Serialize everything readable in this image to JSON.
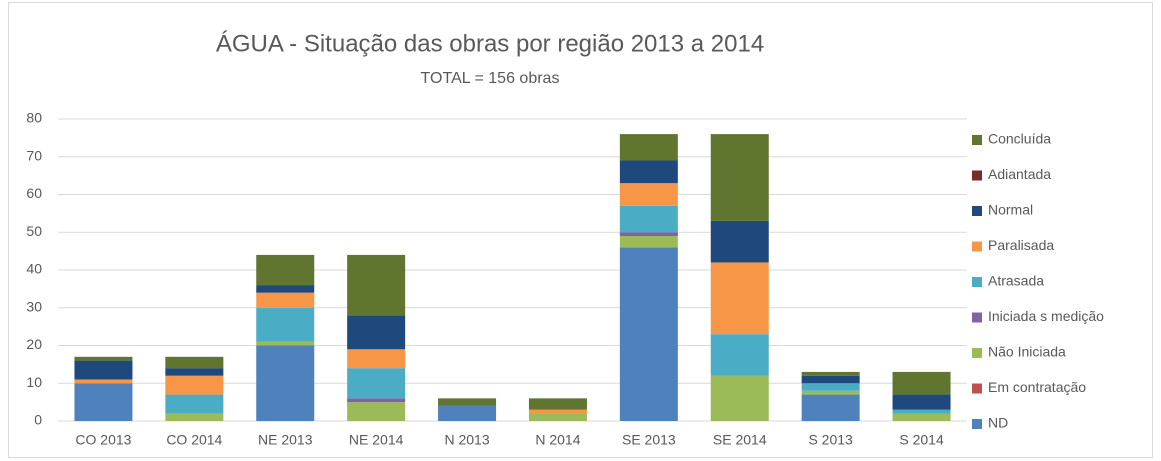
{
  "chart_data": {
    "type": "stacked_bar",
    "title": "ÁGUA - Situação das obras por região 2013 a 2014",
    "subtitle": "TOTAL = 156 obras",
    "categories": [
      "CO 2013",
      "CO 2014",
      "NE 2013",
      "NE 2014",
      "N 2013",
      "N 2014",
      "SE 2013",
      "SE 2014",
      "S 2013",
      "S 2014"
    ],
    "series": [
      {
        "name": "ND",
        "color": "#4f81bd",
        "values": [
          10,
          0,
          20,
          0,
          4,
          0,
          46,
          0,
          7,
          0
        ]
      },
      {
        "name": "Em contratação",
        "color": "#c0504d",
        "values": [
          0,
          0,
          0,
          0,
          0,
          0,
          0,
          0,
          0,
          0
        ]
      },
      {
        "name": "Não Iniciada",
        "color": "#9bbb59",
        "values": [
          0,
          2,
          1,
          5,
          0,
          2,
          3,
          12,
          1,
          2
        ]
      },
      {
        "name": "Iniciada s medição",
        "color": "#8064a2",
        "values": [
          0,
          0,
          0,
          1,
          0,
          0,
          1,
          0,
          0,
          0
        ]
      },
      {
        "name": "Atrasada",
        "color": "#4bacc6",
        "values": [
          0,
          5,
          9,
          8,
          0,
          0,
          7,
          11,
          2,
          1
        ]
      },
      {
        "name": "Paralisada",
        "color": "#f79646",
        "values": [
          1,
          5,
          4,
          5,
          0,
          1,
          6,
          19,
          0,
          0
        ]
      },
      {
        "name": "Normal",
        "color": "#1f497d",
        "values": [
          5,
          2,
          2,
          9,
          0,
          0,
          6,
          11,
          2,
          4
        ]
      },
      {
        "name": "Adiantada",
        "color": "#772c2a",
        "values": [
          0,
          0,
          0,
          0,
          0,
          0,
          0,
          0,
          0,
          0
        ]
      },
      {
        "name": "Concluída",
        "color": "#5f7530",
        "values": [
          1,
          3,
          8,
          16,
          2,
          3,
          7,
          23,
          1,
          6
        ]
      }
    ],
    "ylim": [
      0,
      80
    ],
    "yticks": [
      0,
      10,
      20,
      30,
      40,
      50,
      60,
      70,
      80
    ],
    "grid": true,
    "legend": "right"
  }
}
